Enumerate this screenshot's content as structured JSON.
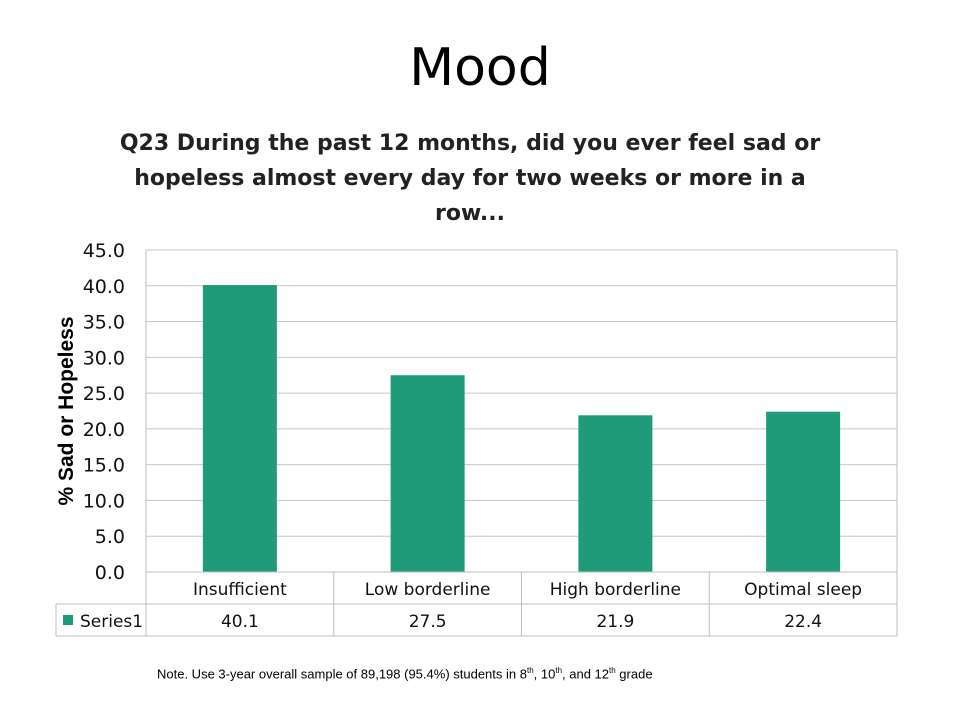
{
  "slide": {
    "title": "Mood"
  },
  "chart_data": {
    "type": "bar",
    "title": "Q23 During the past 12 months, did you ever feel sad or hopeless almost every day for two weeks or more in a row...",
    "title_lines": [
      "Q23 During the past 12 months, did you ever feel sad or",
      "hopeless almost every day for two weeks or more in a",
      "row..."
    ],
    "xlabel": "",
    "ylabel": "% Sad or Hopeless",
    "ylim": [
      0,
      45
    ],
    "yticks": [
      0,
      5,
      10,
      15,
      20,
      25,
      30,
      35,
      40,
      45
    ],
    "ytick_labels": [
      "0.0",
      "5.0",
      "10.0",
      "15.0",
      "20.0",
      "25.0",
      "30.0",
      "35.0",
      "40.0",
      "45.0"
    ],
    "grid": true,
    "categories": [
      "Insufficient",
      "Low borderline",
      "High borderline",
      "Optimal sleep"
    ],
    "series": [
      {
        "name": "Series1",
        "values": [
          40.1,
          27.5,
          21.9,
          22.4
        ],
        "value_labels": [
          "40.1",
          "27.5",
          "21.9",
          "22.4"
        ],
        "color": "#1f9b7a"
      }
    ],
    "data_table": true
  },
  "note": {
    "prefix": "Note. Use 3-year overall sample of 89,198 (95.4%) students in 8",
    "sup1": "th",
    "mid1": ", 10",
    "sup2": "th",
    "mid2": ", and 12",
    "sup3": "th",
    "suffix": " grade"
  }
}
